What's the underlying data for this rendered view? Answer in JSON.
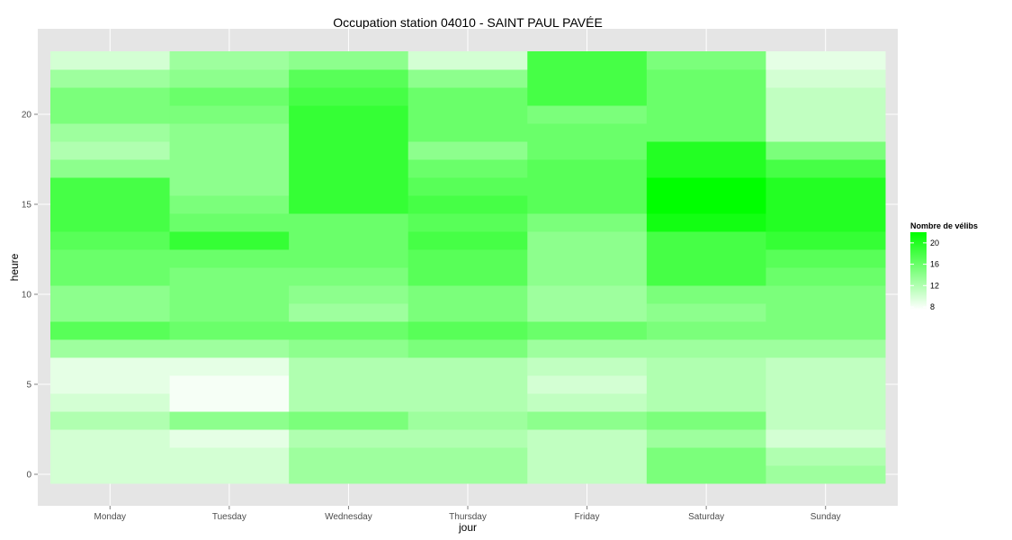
{
  "chart_data": {
    "type": "heatmap",
    "title": "Occupation station 04010 - SAINT PAUL PAVÉE",
    "xlabel": "jour",
    "ylabel": "heure",
    "x_categories": [
      "Monday",
      "Tuesday",
      "Wednesday",
      "Thursday",
      "Friday",
      "Saturday",
      "Sunday"
    ],
    "y_range": [
      0,
      23
    ],
    "y_ticks": [
      0,
      5,
      10,
      15,
      20
    ],
    "grid": true,
    "legend": {
      "title": "Nombre de vélibs",
      "ticks": [
        8,
        12,
        16,
        20
      ],
      "min": 7.5,
      "max": 22,
      "low_color": "#ffffff",
      "high_color": "#00ff00",
      "position": "right"
    },
    "values_by_hour": [
      [
        10,
        10,
        13,
        13,
        11,
        15,
        13
      ],
      [
        10,
        10,
        13,
        13,
        11,
        15,
        12
      ],
      [
        10,
        9,
        12,
        12,
        11,
        13,
        10
      ],
      [
        12,
        14,
        15,
        13,
        14,
        15,
        11
      ],
      [
        10,
        8,
        12,
        12,
        11,
        12,
        11
      ],
      [
        9,
        8,
        12,
        12,
        10,
        12,
        11
      ],
      [
        9,
        9,
        12,
        12,
        11,
        12,
        11
      ],
      [
        13,
        13,
        14,
        15,
        13,
        13,
        13
      ],
      [
        17,
        16,
        16,
        17,
        16,
        15,
        15
      ],
      [
        14,
        15,
        13,
        15,
        13,
        14,
        15
      ],
      [
        14,
        15,
        14,
        15,
        13,
        15,
        15
      ],
      [
        16,
        15,
        15,
        17,
        14,
        18,
        16
      ],
      [
        16,
        16,
        16,
        17,
        14,
        18,
        17
      ],
      [
        17,
        19,
        16,
        18,
        14,
        18,
        19
      ],
      [
        18,
        16,
        16,
        17,
        15,
        21,
        20
      ],
      [
        18,
        15,
        19,
        18,
        17,
        22,
        20
      ],
      [
        18,
        14,
        19,
        17,
        17,
        22,
        20
      ],
      [
        14,
        14,
        19,
        16,
        17,
        20,
        18
      ],
      [
        12,
        14,
        19,
        14,
        16,
        20,
        15
      ],
      [
        13,
        14,
        19,
        16,
        16,
        16,
        11
      ],
      [
        15,
        15,
        19,
        16,
        15,
        16,
        11
      ],
      [
        15,
        16,
        18,
        16,
        18,
        16,
        11
      ],
      [
        13,
        14,
        17,
        14,
        18,
        16,
        10
      ],
      [
        10,
        13,
        14,
        10,
        18,
        15,
        9
      ]
    ]
  }
}
